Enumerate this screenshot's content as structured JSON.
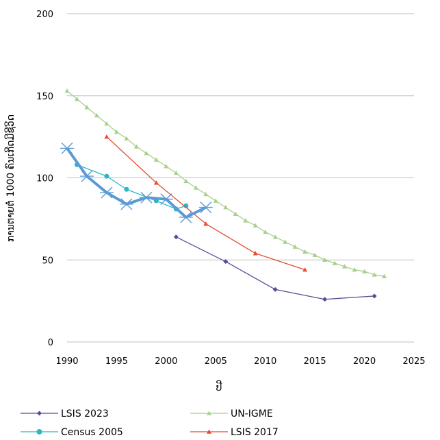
{
  "chart_data": {
    "type": "line",
    "title": "",
    "xlabel": "ປີ",
    "ylabel": "ການຕາຍຕໍ່ 1000 ຄົນເກີດມີຊີວິດ",
    "xlim": [
      1990,
      2025
    ],
    "ylim": [
      0,
      200
    ],
    "x_ticks": [
      "1990",
      "1995",
      "2000",
      "2005",
      "2010",
      "2015",
      "2020",
      "2025"
    ],
    "y_ticks": [
      "0",
      "50",
      "100",
      "150",
      "200"
    ],
    "grid": "horizontal",
    "legend_position": "bottom",
    "series": [
      {
        "name": "LSIS 2023",
        "color": "#5b4a96",
        "marker": "diamond",
        "points": [
          [
            2001,
            64
          ],
          [
            2006,
            49
          ],
          [
            2011,
            32
          ],
          [
            2016,
            26
          ],
          [
            2021,
            28
          ]
        ]
      },
      {
        "name": "UN-IGME",
        "color": "#a6d08b",
        "marker": "triangle",
        "points": [
          [
            1990,
            153
          ],
          [
            1991,
            148
          ],
          [
            1992,
            143
          ],
          [
            1993,
            138
          ],
          [
            1994,
            133
          ],
          [
            1995,
            128
          ],
          [
            1996,
            124
          ],
          [
            1997,
            119
          ],
          [
            1998,
            115
          ],
          [
            1999,
            111
          ],
          [
            2000,
            107
          ],
          [
            2001,
            103
          ],
          [
            2002,
            98
          ],
          [
            2003,
            94
          ],
          [
            2004,
            90
          ],
          [
            2005,
            86
          ],
          [
            2006,
            82
          ],
          [
            2007,
            78
          ],
          [
            2008,
            74
          ],
          [
            2009,
            71
          ],
          [
            2010,
            67
          ],
          [
            2011,
            64
          ],
          [
            2012,
            61
          ],
          [
            2013,
            58
          ],
          [
            2014,
            55
          ],
          [
            2015,
            53
          ],
          [
            2016,
            50
          ],
          [
            2017,
            48
          ],
          [
            2018,
            46
          ],
          [
            2019,
            44
          ],
          [
            2020,
            43
          ],
          [
            2021,
            41
          ],
          [
            2022,
            40
          ]
        ]
      },
      {
        "name": "Census 2005",
        "color": "#2bb7c6",
        "marker": "circle",
        "points": [
          [
            1991,
            108
          ],
          [
            1994,
            101
          ],
          [
            1996,
            93
          ],
          [
            1999,
            86
          ],
          [
            2001,
            81
          ],
          [
            2002,
            83
          ]
        ]
      },
      {
        "name": "LSIS 2017",
        "color": "#e84a2e",
        "marker": "triangle",
        "points": [
          [
            1994,
            125
          ],
          [
            1999,
            97
          ],
          [
            2004,
            72
          ],
          [
            2009,
            54
          ],
          [
            2014,
            44
          ]
        ]
      },
      {
        "name": "",
        "color": "#5b9bd5",
        "marker": "cross",
        "points": [
          [
            1990,
            118
          ],
          [
            1992,
            101
          ],
          [
            1994,
            91
          ],
          [
            1996,
            84
          ],
          [
            1998,
            88
          ],
          [
            2000,
            87
          ],
          [
            2002,
            76
          ],
          [
            2004,
            82
          ]
        ]
      }
    ]
  }
}
